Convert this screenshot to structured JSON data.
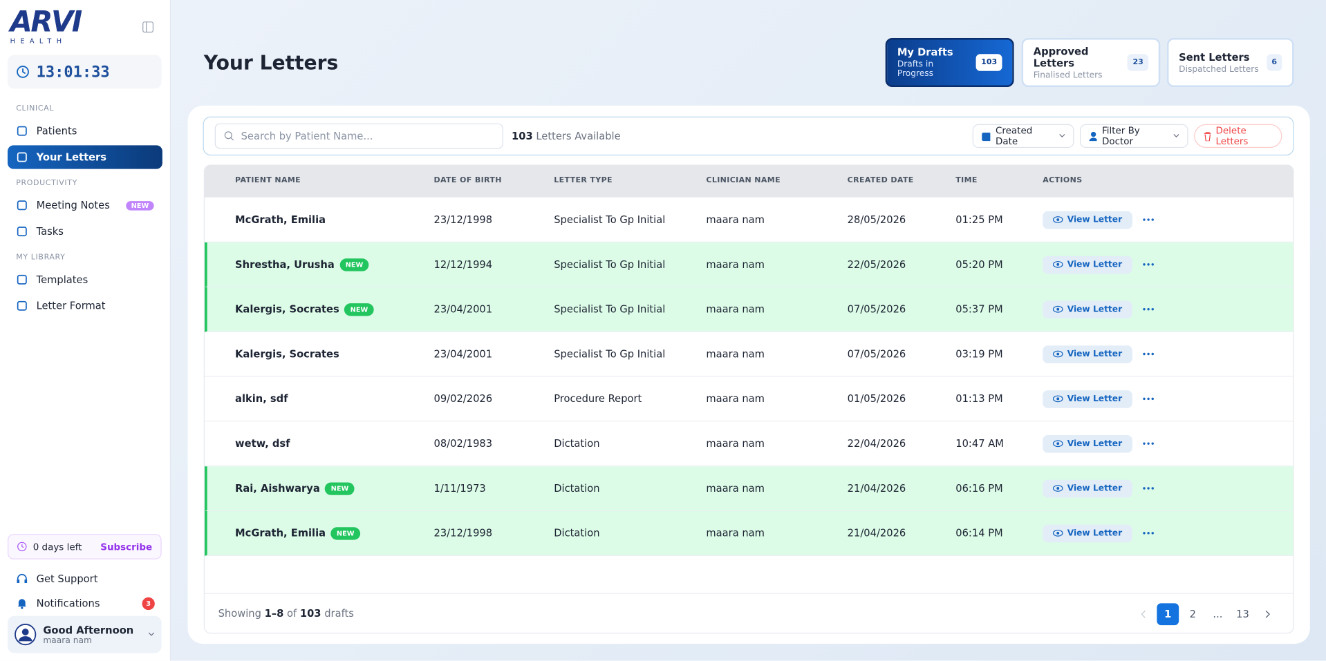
{
  "logo": {
    "name": "ARVI",
    "sub": "HEALTH"
  },
  "clock": "13:01:33",
  "nav": [
    {
      "section": "CLINICAL",
      "items": [
        {
          "label": "Patients"
        },
        {
          "label": "Your Letters",
          "active": true
        }
      ]
    },
    {
      "section": "PRODUCTIVITY",
      "items": [
        {
          "label": "Meeting Notes",
          "badge": "NEW"
        },
        {
          "label": "Tasks"
        }
      ]
    },
    {
      "section": "MY LIBRARY",
      "items": [
        {
          "label": "Templates"
        },
        {
          "label": "Letter Format"
        }
      ]
    }
  ],
  "trial": {
    "text": "0 days left",
    "action": "Subscribe"
  },
  "support": "Get Support",
  "notifications": {
    "label": "Notifications",
    "count": "3"
  },
  "user": {
    "greeting": "Good Afternoon",
    "name": "maara nam"
  },
  "header": {
    "title": "Your Letters"
  },
  "tabs": [
    {
      "title": "My Drafts",
      "subtitle": "Drafts in Progress",
      "count": "103",
      "active": true
    },
    {
      "title": "Approved Letters",
      "subtitle": "Finalised Letters",
      "count": "23"
    },
    {
      "title": "Sent Letters",
      "subtitle": "Dispatched Letters",
      "count": "6"
    }
  ],
  "toolbar": {
    "search_placeholder": "Search by Patient Name...",
    "count": "103",
    "count_label": "Letters Available",
    "sort": "Created Date",
    "filter": "Filter By Doctor",
    "delete": "Delete Letters"
  },
  "table": {
    "columns": [
      "PATIENT NAME",
      "DATE OF BIRTH",
      "LETTER TYPE",
      "CLINICIAN NAME",
      "CREATED DATE",
      "TIME",
      "ACTIONS"
    ],
    "new_badge": "NEW",
    "action": "View Letter",
    "rows": [
      {
        "name": "McGrath, Emilia",
        "new": false,
        "dob": "23/12/1998",
        "type": "Specialist To Gp Initial",
        "clinician": "maara nam",
        "created": "28/05/2026",
        "time": "01:25 PM"
      },
      {
        "name": "Shrestha, Urusha",
        "new": true,
        "dob": "12/12/1994",
        "type": "Specialist To Gp Initial",
        "clinician": "maara nam",
        "created": "22/05/2026",
        "time": "05:20 PM"
      },
      {
        "name": "Kalergis, Socrates",
        "new": true,
        "dob": "23/04/2001",
        "type": "Specialist To Gp Initial",
        "clinician": "maara nam",
        "created": "07/05/2026",
        "time": "05:37 PM"
      },
      {
        "name": "Kalergis, Socrates",
        "new": false,
        "dob": "23/04/2001",
        "type": "Specialist To Gp Initial",
        "clinician": "maara nam",
        "created": "07/05/2026",
        "time": "03:19 PM"
      },
      {
        "name": "alkin, sdf",
        "new": false,
        "dob": "09/02/2026",
        "type": "Procedure Report",
        "clinician": "maara nam",
        "created": "01/05/2026",
        "time": "01:13 PM"
      },
      {
        "name": "wetw, dsf",
        "new": false,
        "dob": "08/02/1983",
        "type": "Dictation",
        "clinician": "maara nam",
        "created": "22/04/2026",
        "time": "10:47 AM"
      },
      {
        "name": "Rai, Aishwarya",
        "new": true,
        "dob": "1/11/1973",
        "type": "Dictation",
        "clinician": "maara nam",
        "created": "21/04/2026",
        "time": "06:16 PM"
      },
      {
        "name": "McGrath, Emilia",
        "new": true,
        "dob": "23/12/1998",
        "type": "Dictation",
        "clinician": "maara nam",
        "created": "21/04/2026",
        "time": "06:14 PM"
      }
    ]
  },
  "footer": {
    "showing": "Showing",
    "range": "1–8",
    "of": "of",
    "total": "103",
    "unit": "drafts"
  },
  "pagination": {
    "pages": [
      "1",
      "2",
      "...",
      "13"
    ],
    "current": 0
  }
}
